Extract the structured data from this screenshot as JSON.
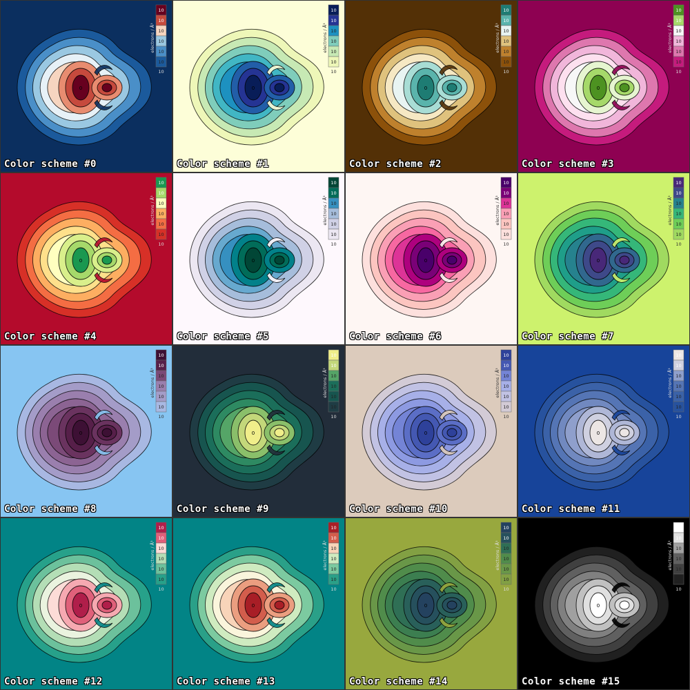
{
  "colorbar_label": "electrons / Å³",
  "tick_base": "10",
  "center_label": "0",
  "tiles": [
    {
      "caption": "Color scheme #0",
      "bg": "#0b2f5f",
      "colors": [
        "#0b2f5f",
        "#1b5a9c",
        "#4a8fc8",
        "#9ac8e2",
        "#e7f1f7",
        "#f6d5c0",
        "#e88c70",
        "#c64a3d",
        "#67001f"
      ],
      "text": "#dddddd"
    },
    {
      "caption": "Color scheme #1",
      "bg": "#fdfed8",
      "colors": [
        "#fdfed8",
        "#eef7b8",
        "#c7e9b4",
        "#7fcdbb",
        "#41b6c4",
        "#1d91c0",
        "#225ea8",
        "#253494",
        "#081d58"
      ],
      "text": "#333333"
    },
    {
      "caption": "Color scheme #2",
      "bg": "#533006",
      "colors": [
        "#533006",
        "#8c510a",
        "#bf812d",
        "#dfc27d",
        "#f6e8c3",
        "#e8f4f2",
        "#a8ddd5",
        "#5ab4ac",
        "#1e7c73"
      ],
      "text": "#dddddd"
    },
    {
      "caption": "Color scheme #3",
      "bg": "#8e0152",
      "colors": [
        "#8e0152",
        "#c51b7d",
        "#de77ae",
        "#f1b6da",
        "#fde0ef",
        "#f7f7f7",
        "#e6f5d0",
        "#a6d96a",
        "#4d9221"
      ],
      "text": "#dddddd"
    },
    {
      "caption": "Color scheme #4",
      "bg": "#b40b2c",
      "colors": [
        "#b40b2c",
        "#d73027",
        "#f46d43",
        "#fdae61",
        "#fee08b",
        "#ffffbf",
        "#d9ef8b",
        "#a6d96a",
        "#1a9850"
      ],
      "text": "#dddddd"
    },
    {
      "caption": "Color scheme #5",
      "bg": "#fef8fd",
      "colors": [
        "#fef8fd",
        "#ece7f2",
        "#d0d1e6",
        "#a6bddb",
        "#67a9cf",
        "#3690c0",
        "#02818a",
        "#016c59",
        "#014636"
      ],
      "text": "#333333"
    },
    {
      "caption": "Color scheme #6",
      "bg": "#fef6f3",
      "colors": [
        "#fef6f3",
        "#fde0dd",
        "#fcc5c0",
        "#fa9fb5",
        "#f768a1",
        "#dd3497",
        "#ae017e",
        "#7a0177",
        "#49006a"
      ],
      "text": "#333333"
    },
    {
      "caption": "Color scheme #7",
      "bg": "#cdf26d",
      "colors": [
        "#cdf26d",
        "#a0da60",
        "#6ece58",
        "#35b779",
        "#1f9e89",
        "#26828e",
        "#31688e",
        "#3e4989",
        "#482878"
      ],
      "text": "#333333"
    },
    {
      "caption": "Color scheme #8",
      "bg": "#87c5f2",
      "colors": [
        "#87c5f2",
        "#a8b8e2",
        "#a49cc8",
        "#9a7fae",
        "#8c6493",
        "#7b4a78",
        "#6a335f",
        "#561f49",
        "#3d1034"
      ],
      "text": "#333333"
    },
    {
      "caption": "Color scheme #9",
      "bg": "#222d3a",
      "colors": [
        "#222d3a",
        "#1f3c44",
        "#17554f",
        "#1b6e5a",
        "#2e8a62",
        "#55a567",
        "#8abf6a",
        "#c3d77a",
        "#f0ee8a"
      ],
      "text": "#dddddd"
    },
    {
      "caption": "Color scheme #10",
      "bg": "#dccbbc",
      "colors": [
        "#dccbbc",
        "#d3cbd6",
        "#c1c2e4",
        "#a7b0e8",
        "#8d9ae2",
        "#7484d6",
        "#5b6ec6",
        "#4458b2",
        "#2e419a"
      ],
      "text": "#333333"
    },
    {
      "caption": "Color scheme #11",
      "bg": "#17449a",
      "colors": [
        "#17449a",
        "#27529e",
        "#3b62a8",
        "#5575b5",
        "#7189c0",
        "#8f9fcc",
        "#afb7d7",
        "#cfd0e0",
        "#ece6e4"
      ],
      "text": "#dddddd"
    },
    {
      "caption": "Color scheme #12",
      "bg": "#028486",
      "colors": [
        "#028486",
        "#27a18a",
        "#6cc19c",
        "#b4deb6",
        "#eaf3df",
        "#fcdcd7",
        "#f6a9b1",
        "#e0607a",
        "#b01e4a"
      ],
      "text": "#dddddd"
    },
    {
      "caption": "Color scheme #13",
      "bg": "#028486",
      "colors": [
        "#028486",
        "#2aa088",
        "#7ccaa0",
        "#cfebc0",
        "#faf5dc",
        "#f8d4b9",
        "#eb9e80",
        "#d35d4c",
        "#a81e26"
      ],
      "text": "#dddddd"
    },
    {
      "caption": "Color scheme #14",
      "bg": "#98a83e",
      "colors": [
        "#98a83e",
        "#82a043",
        "#699748",
        "#508c4b",
        "#3c7e50",
        "#2f6f55",
        "#29605a",
        "#26505d",
        "#24425f"
      ],
      "text": "#dddddd"
    },
    {
      "caption": "Color scheme #15",
      "bg": "#000000",
      "colors": [
        "#000000",
        "#202020",
        "#404040",
        "#606060",
        "#808080",
        "#a0a0a0",
        "#c0c0c0",
        "#e0e0e0",
        "#ffffff"
      ],
      "text": "#dddddd"
    }
  ]
}
